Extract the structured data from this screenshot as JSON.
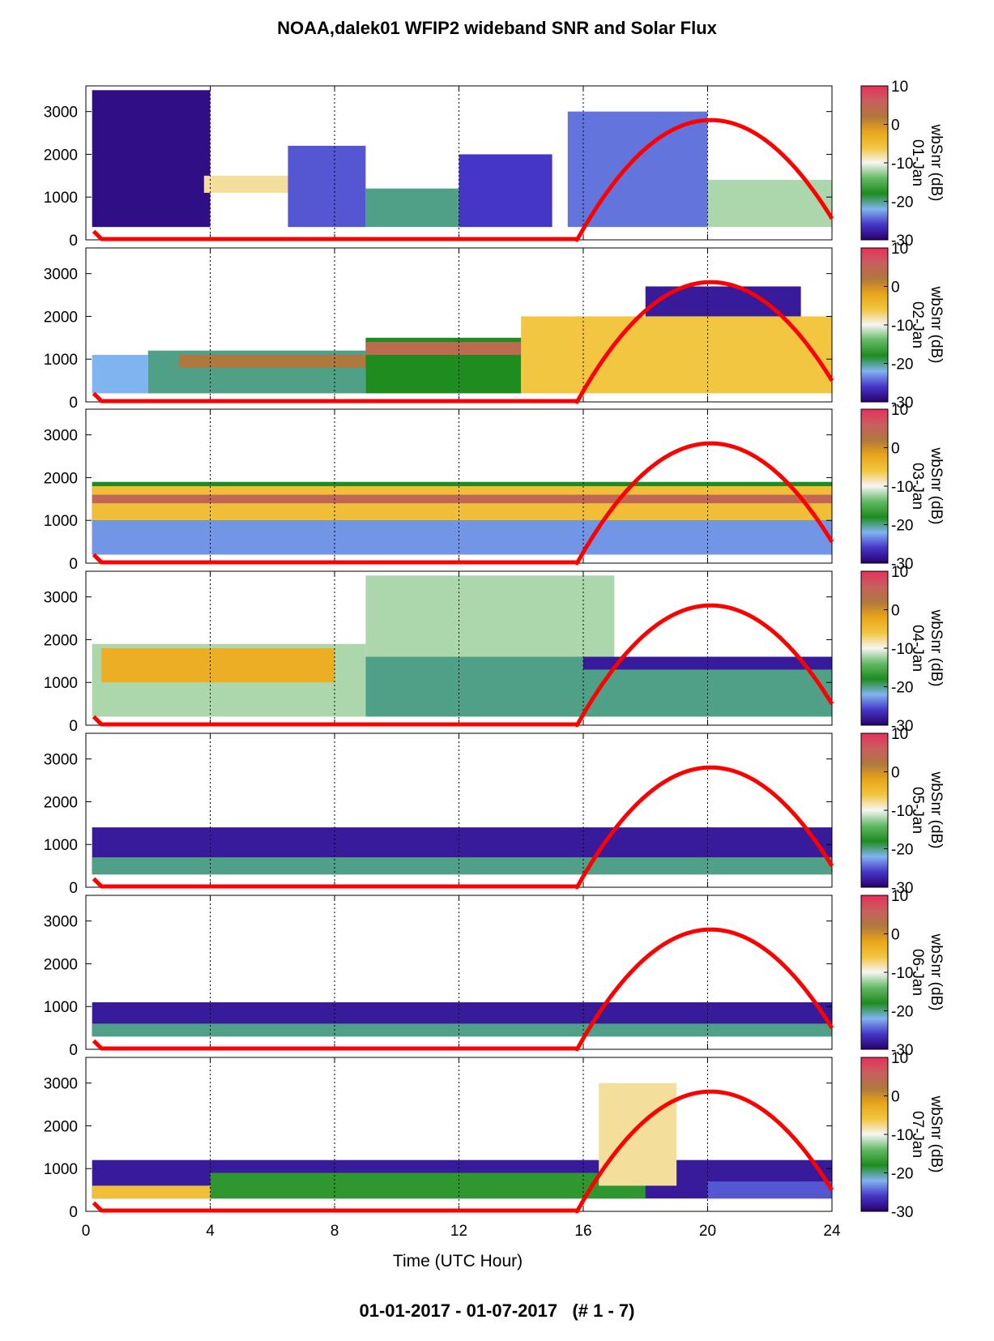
{
  "title": "NOAA,dalek01 WFIP2 wideband SNR and Solar Flux",
  "footer": "01-01-2017 - 01-07-2017   (# 1 - 7)",
  "chart_data": {
    "type": "heatmap",
    "xlabel": "Time (UTC Hour)",
    "x_ticks": [
      0,
      4,
      8,
      12,
      16,
      20,
      24
    ],
    "xlim": [
      0,
      24
    ],
    "y_ticks": [
      0,
      1000,
      2000,
      3000
    ],
    "ylim": [
      0,
      3600
    ],
    "colorbar": {
      "label": "wbSnr (dB)",
      "ticks": [
        10,
        0,
        -10,
        -20,
        -30
      ],
      "range": [
        -30,
        10
      ],
      "stops": [
        "#28006e",
        "#4636c8",
        "#80b4f0",
        "#1f8c1f",
        "#62b962",
        "#f5f5f5",
        "#f2c640",
        "#e8a61a",
        "#b0783c",
        "#c86060",
        "#e8305a"
      ]
    },
    "solar_flux_color": "#ff0000",
    "solar_flux_curve": {
      "sunrise_hour": 15.8,
      "peak_hour": 20.1,
      "peak_height": 2800
    },
    "panels": [
      {
        "day": "01-Jan",
        "snr_layers": [
          {
            "x": [
              0.2,
              4.0
            ],
            "top": 3500,
            "bottom": 300,
            "snr": -29
          },
          {
            "x": [
              3.8,
              6.5
            ],
            "top": 1500,
            "bottom": 1100,
            "snr": -8
          },
          {
            "x": [
              6.5,
              9.0
            ],
            "top": 2200,
            "bottom": 300,
            "snr": -25
          },
          {
            "x": [
              9.0,
              12.0
            ],
            "top": 1200,
            "bottom": 300,
            "snr": -20
          },
          {
            "x": [
              12.0,
              15.0
            ],
            "top": 2000,
            "bottom": 300,
            "snr": -26
          },
          {
            "x": [
              15.5,
              20.0
            ],
            "top": 3000,
            "bottom": 300,
            "snr": -24
          },
          {
            "x": [
              20.0,
              24.0
            ],
            "top": 1400,
            "bottom": 300,
            "snr": -12
          }
        ]
      },
      {
        "day": "02-Jan",
        "snr_layers": [
          {
            "x": [
              0.2,
              2.0
            ],
            "top": 1100,
            "bottom": 200,
            "snr": -22
          },
          {
            "x": [
              2.0,
              9.0
            ],
            "top": 1200,
            "bottom": 200,
            "snr": -20
          },
          {
            "x": [
              3.0,
              9.0
            ],
            "top": 1100,
            "bottom": 800,
            "snr": 2
          },
          {
            "x": [
              9.0,
              14.0
            ],
            "top": 1500,
            "bottom": 200,
            "snr": -18
          },
          {
            "x": [
              9.0,
              14.0
            ],
            "top": 1400,
            "bottom": 1100,
            "snr": 4
          },
          {
            "x": [
              14.0,
              24.0
            ],
            "top": 2000,
            "bottom": 200,
            "snr": -6
          },
          {
            "x": [
              18.0,
              23.0
            ],
            "top": 2700,
            "bottom": 2000,
            "snr": -28
          }
        ]
      },
      {
        "day": "03-Jan",
        "snr_layers": [
          {
            "x": [
              0.2,
              24.0
            ],
            "top": 1900,
            "bottom": 200,
            "snr": -18
          },
          {
            "x": [
              0.2,
              24.0
            ],
            "top": 1800,
            "bottom": 1000,
            "snr": -5
          },
          {
            "x": [
              0.2,
              24.0
            ],
            "top": 1600,
            "bottom": 1400,
            "snr": 5
          },
          {
            "x": [
              0.2,
              24.0
            ],
            "top": 1000,
            "bottom": 200,
            "snr": -23
          }
        ]
      },
      {
        "day": "04-Jan",
        "snr_layers": [
          {
            "x": [
              0.2,
              9.0
            ],
            "top": 1900,
            "bottom": 200,
            "snr": -12
          },
          {
            "x": [
              0.5,
              8.0
            ],
            "top": 1800,
            "bottom": 1000,
            "snr": -3
          },
          {
            "x": [
              9.0,
              17.0
            ],
            "top": 3500,
            "bottom": 1500,
            "snr": -12
          },
          {
            "x": [
              9.0,
              24.0
            ],
            "top": 1600,
            "bottom": 200,
            "snr": -20
          },
          {
            "x": [
              16.0,
              24.0
            ],
            "top": 1600,
            "bottom": 1300,
            "snr": -28
          }
        ]
      },
      {
        "day": "05-Jan",
        "snr_layers": [
          {
            "x": [
              0.2,
              24.0
            ],
            "top": 1400,
            "bottom": 300,
            "snr": -28
          },
          {
            "x": [
              0.2,
              24.0
            ],
            "top": 700,
            "bottom": 300,
            "snr": -20
          }
        ]
      },
      {
        "day": "06-Jan",
        "snr_layers": [
          {
            "x": [
              0.2,
              24.0
            ],
            "top": 1100,
            "bottom": 300,
            "snr": -28
          },
          {
            "x": [
              0.2,
              24.0
            ],
            "top": 600,
            "bottom": 300,
            "snr": -20
          }
        ]
      },
      {
        "day": "07-Jan",
        "snr_layers": [
          {
            "x": [
              0.2,
              24.0
            ],
            "top": 1200,
            "bottom": 300,
            "snr": -28
          },
          {
            "x": [
              0.2,
              4.0
            ],
            "top": 600,
            "bottom": 300,
            "snr": -5
          },
          {
            "x": [
              4.0,
              18.0
            ],
            "top": 900,
            "bottom": 300,
            "snr": -17
          },
          {
            "x": [
              16.5,
              19.0
            ],
            "top": 3000,
            "bottom": 600,
            "snr": -8
          },
          {
            "x": [
              20.0,
              24.0
            ],
            "top": 700,
            "bottom": 300,
            "snr": -25
          }
        ]
      }
    ]
  }
}
